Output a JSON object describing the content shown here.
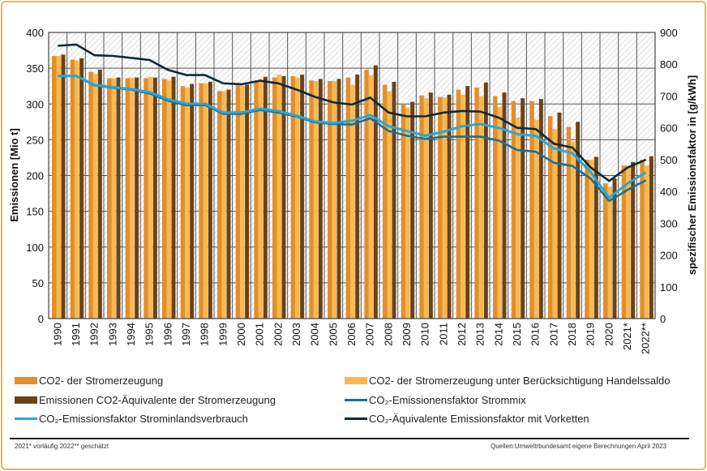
{
  "chart_data": {
    "type": "bar",
    "categories": [
      "1990",
      "1991",
      "1992",
      "1993",
      "1994",
      "1995",
      "1996",
      "1997",
      "1998",
      "1999",
      "2000",
      "2001",
      "2002",
      "2003",
      "2004",
      "2005",
      "2006",
      "2007",
      "2008",
      "2009",
      "2010",
      "2011",
      "2012",
      "2013",
      "2014",
      "2015",
      "2016",
      "2017",
      "2018",
      "2019",
      "2020",
      "2021*",
      "2022**"
    ],
    "ylabel": "Emissionen  [Mio t]",
    "ylim": [
      0,
      400
    ],
    "yticks": [
      0,
      50,
      100,
      150,
      200,
      250,
      300,
      350,
      400
    ],
    "y2label": "spezifischer Emissionsfaktor  in [g/kWh]",
    "y2lim": [
      0,
      900
    ],
    "y2ticks": [
      0,
      100,
      200,
      300,
      400,
      500,
      600,
      700,
      800,
      900
    ],
    "grid": true,
    "legend_position": "bottom",
    "series": [
      {
        "name": "CO2- der Stromerzeugung",
        "type": "bar",
        "axis": "left",
        "color": "#e08f2c",
        "values": [
          367,
          362,
          345,
          336,
          336,
          336,
          335,
          325,
          329,
          318,
          326,
          333,
          337,
          339,
          333,
          332,
          337,
          348,
          327,
          299,
          312,
          310,
          320,
          323,
          311,
          304,
          304,
          283,
          268,
          222,
          189,
          214,
          222
        ]
      },
      {
        "name": "CO2- der Stromerzeugung unter Berücksichtigung Handelssaldo",
        "type": "bar",
        "axis": "left",
        "color": "#fbb84e",
        "values": [
          367,
          361,
          342,
          336,
          337,
          338,
          333,
          323,
          329,
          318,
          326,
          335,
          341,
          337,
          332,
          332,
          327,
          340,
          318,
          295,
          308,
          309,
          313,
          311,
          296,
          281,
          278,
          265,
          248,
          222,
          184,
          214,
          214
        ]
      },
      {
        "name": "Emissionen CO2-Äquivalente der Stromerzeugung",
        "type": "bar",
        "axis": "left",
        "color": "#6b4219",
        "values": [
          369,
          364,
          348,
          337,
          337,
          337,
          338,
          328,
          331,
          320,
          327,
          338,
          339,
          341,
          335,
          335,
          341,
          354,
          331,
          303,
          316,
          313,
          325,
          330,
          316,
          308,
          307,
          288,
          275,
          226,
          196,
          219,
          227
        ]
      },
      {
        "name": "CO₂-Emissionensfaktor Strommix",
        "type": "line",
        "axis": "right",
        "color": "#1d6f94",
        "values": [
          763,
          763,
          733,
          726,
          720,
          708,
          685,
          671,
          672,
          644,
          644,
          656,
          648,
          635,
          617,
          612,
          610,
          630,
          590,
          575,
          565,
          572,
          572,
          572,
          560,
          530,
          525,
          490,
          480,
          440,
          370,
          405,
          435
        ]
      },
      {
        "name": "CO₂-Emissionsfaktor Strominlandsverbrauch",
        "type": "line",
        "axis": "right",
        "color": "#2ca6d4",
        "values": [
          763,
          763,
          735,
          728,
          722,
          712,
          690,
          676,
          676,
          648,
          648,
          660,
          653,
          638,
          620,
          615,
          622,
          640,
          605,
          590,
          575,
          588,
          605,
          612,
          600,
          580,
          575,
          535,
          520,
          460,
          380,
          425,
          460
        ]
      },
      {
        "name": "CO₂-Äquivalente Emissionsfaktor mit Vorketten",
        "type": "line",
        "axis": "right",
        "color": "#0e2a36",
        "values": [
          858,
          862,
          828,
          826,
          820,
          813,
          782,
          766,
          766,
          740,
          737,
          748,
          740,
          720,
          697,
          680,
          673,
          695,
          648,
          636,
          636,
          648,
          653,
          651,
          632,
          600,
          596,
          550,
          538,
          475,
          433,
          475,
          500
        ]
      }
    ]
  },
  "legend": [
    {
      "label": "CO2- der Stromerzeugung",
      "kind": "bar",
      "color": "#e08f2c"
    },
    {
      "label": "CO2- der Stromerzeugung unter Berücksichtigung Handelssaldo",
      "kind": "bar",
      "color": "#fbb84e"
    },
    {
      "label": "Emissionen CO2-Äquivalente der Stromerzeugung",
      "kind": "bar",
      "color": "#6b4219"
    },
    {
      "label": "CO₂-Emissionensfaktor Strommix",
      "kind": "line",
      "color": "#1d6f94"
    },
    {
      "label": "CO₂-Emissionsfaktor Strominlandsverbrauch",
      "kind": "line",
      "color": "#2ca6d4"
    },
    {
      "label": "CO₂-Äquivalente Emissionsfaktor mit Vorketten",
      "kind": "line",
      "color": "#0e2a36"
    }
  ],
  "footer": {
    "note": "2021* vorläufig   2022** geschätzt",
    "source": "Quellen:Umweltrbundesamt  eigene Berechnungen  April 2023"
  },
  "colors": {
    "frame": "#f5b642"
  }
}
